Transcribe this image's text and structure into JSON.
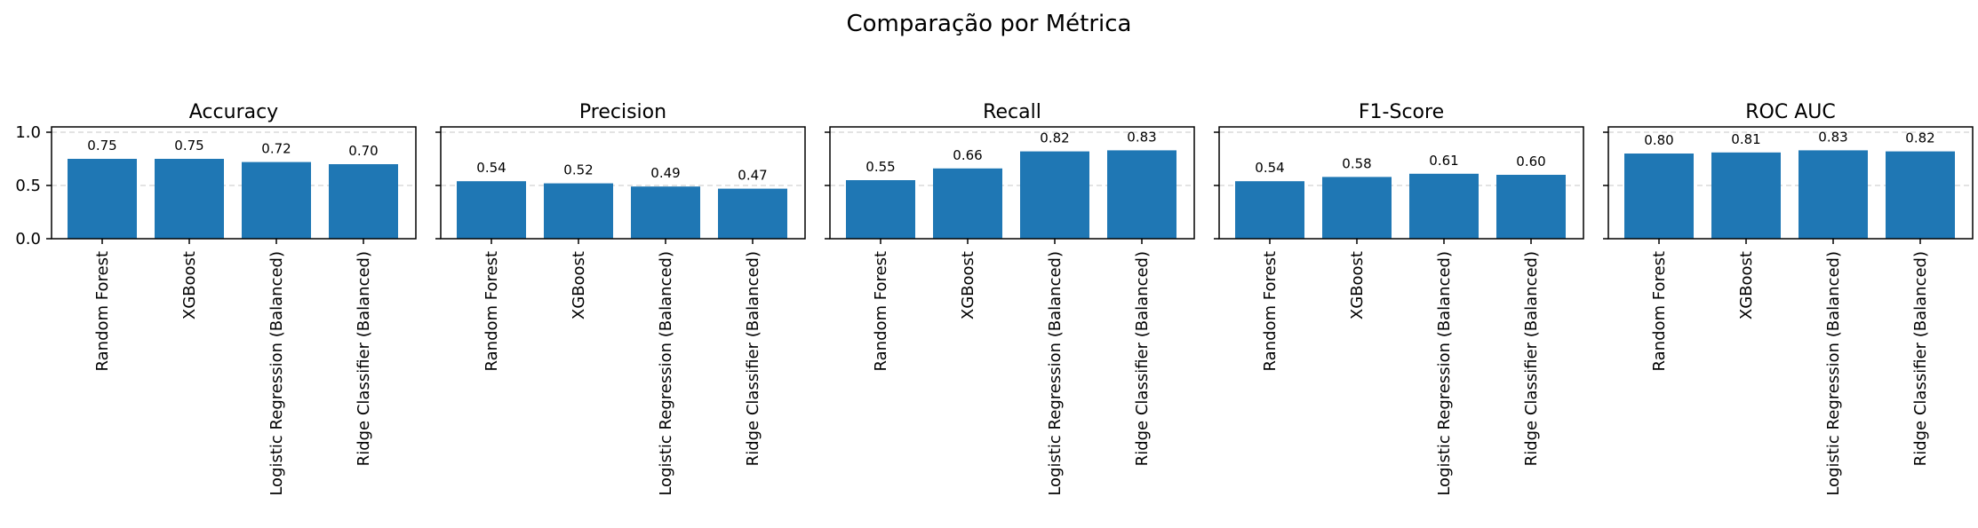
{
  "figure_title": "Comparação por Métrica",
  "chart_data": [
    {
      "type": "bar",
      "title": "Accuracy",
      "categories": [
        "Random Forest",
        "XGBoost",
        "Logistic Regression (Balanced)",
        "Ridge Classifier (Balanced)"
      ],
      "values": [
        0.75,
        0.75,
        0.72,
        0.7
      ],
      "value_labels": [
        "0.75",
        "0.75",
        "0.72",
        "0.70"
      ],
      "ylim": [
        0,
        1.05
      ],
      "yticks": [
        0.0,
        0.5,
        1.0
      ],
      "ytick_labels": [
        "0.0",
        "0.5",
        "1.0"
      ],
      "grid": "y-dashed",
      "bar_color": "#1f77b4"
    },
    {
      "type": "bar",
      "title": "Precision",
      "categories": [
        "Random Forest",
        "XGBoost",
        "Logistic Regression (Balanced)",
        "Ridge Classifier (Balanced)"
      ],
      "values": [
        0.54,
        0.52,
        0.49,
        0.47
      ],
      "value_labels": [
        "0.54",
        "0.52",
        "0.49",
        "0.47"
      ],
      "ylim": [
        0,
        1.05
      ],
      "yticks": [
        0.0,
        0.5,
        1.0
      ],
      "grid": "y-dashed",
      "bar_color": "#1f77b4"
    },
    {
      "type": "bar",
      "title": "Recall",
      "categories": [
        "Random Forest",
        "XGBoost",
        "Logistic Regression (Balanced)",
        "Ridge Classifier (Balanced)"
      ],
      "values": [
        0.55,
        0.66,
        0.82,
        0.83
      ],
      "value_labels": [
        "0.55",
        "0.66",
        "0.82",
        "0.83"
      ],
      "ylim": [
        0,
        1.05
      ],
      "yticks": [
        0.0,
        0.5,
        1.0
      ],
      "grid": "y-dashed",
      "bar_color": "#1f77b4"
    },
    {
      "type": "bar",
      "title": "F1-Score",
      "categories": [
        "Random Forest",
        "XGBoost",
        "Logistic Regression (Balanced)",
        "Ridge Classifier (Balanced)"
      ],
      "values": [
        0.54,
        0.58,
        0.61,
        0.6
      ],
      "value_labels": [
        "0.54",
        "0.58",
        "0.61",
        "0.60"
      ],
      "ylim": [
        0,
        1.05
      ],
      "yticks": [
        0.0,
        0.5,
        1.0
      ],
      "grid": "y-dashed",
      "bar_color": "#1f77b4"
    },
    {
      "type": "bar",
      "title": "ROC AUC",
      "categories": [
        "Random Forest",
        "XGBoost",
        "Logistic Regression (Balanced)",
        "Ridge Classifier (Balanced)"
      ],
      "values": [
        0.8,
        0.81,
        0.83,
        0.82
      ],
      "value_labels": [
        "0.80",
        "0.81",
        "0.83",
        "0.82"
      ],
      "ylim": [
        0,
        1.05
      ],
      "yticks": [
        0.0,
        0.5,
        1.0
      ],
      "grid": "y-dashed",
      "bar_color": "#1f77b4"
    }
  ]
}
